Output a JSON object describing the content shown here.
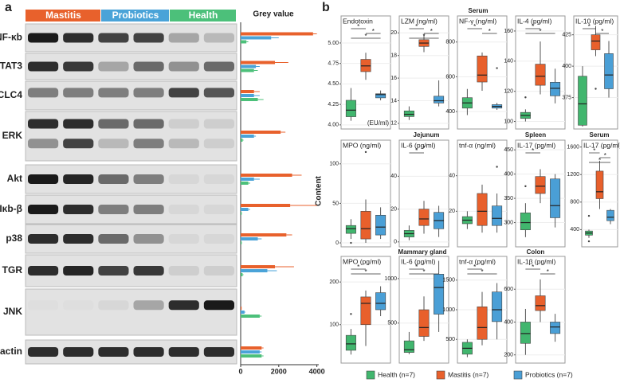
{
  "panel_labels": [
    "a",
    "b"
  ],
  "chart_data": [
    {
      "type": "hbar",
      "title": "Grey value",
      "categories": [
        "NF-κb",
        "STAT3",
        "CLC4",
        "ERK",
        "Akt",
        "Iκb-β",
        "p38",
        "TGR",
        "JNK",
        "β-actin"
      ],
      "series": [
        {
          "name": "Mastitis",
          "color": "#e8612c",
          "values": [
            3800,
            1800,
            700,
            2100,
            2700,
            2600,
            2400,
            1800,
            50,
            1100
          ],
          "errors": [
            200,
            700,
            300,
            250,
            500,
            1400,
            300,
            1000,
            0,
            100
          ]
        },
        {
          "name": "Probiotics",
          "color": "#4aa3d8",
          "values": [
            1600,
            800,
            700,
            700,
            700,
            400,
            900,
            1400,
            200,
            1000
          ],
          "errors": [
            400,
            200,
            300,
            100,
            300,
            100,
            200,
            500,
            50,
            100
          ]
        },
        {
          "name": "Health",
          "color": "#4cc07a",
          "values": [
            300,
            700,
            900,
            100,
            400,
            50,
            50,
            100,
            1000,
            1100
          ],
          "errors": [
            100,
            200,
            300,
            50,
            100,
            20,
            20,
            50,
            100,
            100
          ]
        }
      ],
      "xlim": [
        0,
        4100
      ],
      "xticks": [
        0,
        2000,
        4000
      ]
    },
    {
      "type": "box",
      "title": "Endotoxin",
      "annotation": "(EU/ml)",
      "ylim": [
        3.95,
        5.33
      ],
      "yticks": [
        {
          "value": 4,
          "label": "4.00"
        },
        4.25,
        {
          "value": 4.5,
          "label": "4.50"
        },
        4.75,
        {
          "value": 5,
          "label": "5.00"
        }
      ],
      "boxes": [
        {
          "min": 4.05,
          "q1": 4.1,
          "median": 4.18,
          "q3": 4.3,
          "max": 4.45,
          "outliers": []
        },
        {
          "min": 4.55,
          "q1": 4.65,
          "median": 4.72,
          "q3": 4.8,
          "max": 4.88,
          "outliers": []
        },
        {
          "min": 4.3,
          "q1": 4.33,
          "median": 4.37,
          "q3": 4.38,
          "max": 4.42,
          "outliers": []
        }
      ],
      "brackets": [
        {
          "from": 0,
          "to": 1,
          "label": "*"
        },
        {
          "from": 1,
          "to": 2,
          "label": "*"
        },
        {
          "from": 0,
          "to": 2,
          "label": "*"
        }
      ]
    },
    {
      "type": "box",
      "title": "LZM (ng/ml)",
      "ylim": [
        11.5,
        21.5
      ],
      "yticks": [
        12,
        14,
        16,
        18,
        20
      ],
      "boxes": [
        {
          "min": 12.3,
          "q1": 12.6,
          "median": 12.8,
          "q3": 13.1,
          "max": 13.5,
          "outliers": []
        },
        {
          "min": 18.3,
          "q1": 18.8,
          "median": 19.1,
          "q3": 19.4,
          "max": 19.9,
          "outliers": []
        },
        {
          "min": 13.5,
          "q1": 13.8,
          "median": 14,
          "q3": 14.4,
          "max": 15.8,
          "outliers": []
        }
      ],
      "brackets": [
        {
          "from": 0,
          "to": 1,
          "label": "*"
        },
        {
          "from": 1,
          "to": 2,
          "label": "*"
        },
        {
          "from": 0,
          "to": 2,
          "label": "*"
        }
      ]
    },
    {
      "type": "box",
      "title": "NF-γ (ng/ml)",
      "ylim": [
        300,
        950
      ],
      "yticks": [
        400,
        600,
        800
      ],
      "boxes": [
        {
          "min": 380,
          "q1": 420,
          "median": 450,
          "q3": 480,
          "max": 530,
          "outliers": []
        },
        {
          "min": 520,
          "q1": 570,
          "median": 610,
          "q3": 720,
          "max": 740,
          "outliers": []
        },
        {
          "min": 410,
          "q1": 420,
          "median": 430,
          "q3": 440,
          "max": 450,
          "outliers": [
            650
          ]
        }
      ],
      "brackets": [
        {
          "from": 0,
          "to": 1,
          "label": "*"
        },
        {
          "from": 1,
          "to": 2,
          "label": "*"
        }
      ]
    },
    {
      "type": "box",
      "title": "IL-4 (pg/ml)",
      "ylim": [
        95,
        170
      ],
      "yticks": [
        100,
        120,
        140,
        160
      ],
      "boxes": [
        {
          "min": 100,
          "q1": 102,
          "median": 104,
          "q3": 106,
          "max": 108,
          "outliers": [
            116
          ]
        },
        {
          "min": 118,
          "q1": 124,
          "median": 130,
          "q3": 138,
          "max": 153,
          "outliers": []
        },
        {
          "min": 112,
          "q1": 117,
          "median": 122,
          "q3": 126,
          "max": 135,
          "outliers": []
        }
      ],
      "brackets": [
        {
          "from": 0,
          "to": 1,
          "label": "*"
        },
        {
          "from": 0,
          "to": 2,
          "label": "*"
        }
      ]
    },
    {
      "type": "box",
      "title": "IL-10 (pg/ml)",
      "ylim": [
        350,
        440
      ],
      "yticks": [
        375,
        400,
        425
      ],
      "boxes": [
        {
          "min": 352,
          "q1": 353,
          "median": 370,
          "q3": 392,
          "max": 400,
          "outliers": []
        },
        {
          "min": 408,
          "q1": 413,
          "median": 420,
          "q3": 425,
          "max": 432,
          "outliers": [
            382
          ]
        },
        {
          "min": 375,
          "q1": 382,
          "median": 393,
          "q3": 410,
          "max": 420,
          "outliers": []
        }
      ],
      "brackets": [
        {
          "from": 0,
          "to": 1,
          "label": "*"
        },
        {
          "from": 1,
          "to": 2,
          "label": "*"
        }
      ]
    },
    {
      "type": "box",
      "title": "MPO (ng/ml)",
      "ylim": [
        -5,
        130
      ],
      "yticks": [
        0,
        50,
        100
      ],
      "boxes": [
        {
          "min": 5,
          "q1": 12,
          "median": 18,
          "q3": 22,
          "max": 30,
          "outliers": [
            0
          ]
        },
        {
          "min": 0,
          "q1": 5,
          "median": 18,
          "q3": 40,
          "max": 55,
          "outliers": [
            115
          ]
        },
        {
          "min": 5,
          "q1": 10,
          "median": 20,
          "q3": 35,
          "max": 45,
          "outliers": []
        }
      ],
      "brackets": []
    },
    {
      "type": "box",
      "title": "IL-6 (pg/ml)",
      "ylim": [
        -3,
        62
      ],
      "yticks": [
        0,
        20,
        40
      ],
      "boxes": [
        {
          "min": 1,
          "q1": 3,
          "median": 5,
          "q3": 7,
          "max": 10,
          "outliers": []
        },
        {
          "min": 5,
          "q1": 10,
          "median": 14,
          "q3": 20,
          "max": 25,
          "outliers": [
            58
          ]
        },
        {
          "min": 3,
          "q1": 8,
          "median": 13,
          "q3": 18,
          "max": 22,
          "outliers": []
        }
      ],
      "brackets": [
        {
          "from": 0,
          "to": 1,
          "label": "*"
        }
      ]
    },
    {
      "type": "box",
      "title": "tnf-α (ng/ml)",
      "ylim": [
        0,
        60
      ],
      "yticks": [
        20,
        40
      ],
      "boxes": [
        {
          "min": 10,
          "q1": 13,
          "median": 15,
          "q3": 17,
          "max": 20,
          "outliers": []
        },
        {
          "min": 8,
          "q1": 12,
          "median": 20,
          "q3": 30,
          "max": 35,
          "outliers": []
        },
        {
          "min": 8,
          "q1": 12,
          "median": 16,
          "q3": 23,
          "max": 30,
          "outliers": [
            45
          ]
        }
      ],
      "brackets": []
    },
    {
      "type": "box",
      "title": "IL-17 (pg/ml)",
      "ylim": [
        250,
        470
      ],
      "yticks": [
        300,
        350,
        400,
        450
      ],
      "boxes": [
        {
          "min": 270,
          "q1": 285,
          "median": 300,
          "q3": 320,
          "max": 340,
          "outliers": [
            375
          ]
        },
        {
          "min": 340,
          "q1": 360,
          "median": 375,
          "q3": 395,
          "max": 410,
          "outliers": []
        },
        {
          "min": 290,
          "q1": 310,
          "median": 335,
          "q3": 390,
          "max": 400,
          "outliers": []
        }
      ],
      "brackets": [
        {
          "from": 0,
          "to": 1,
          "label": "*"
        }
      ]
    },
    {
      "type": "box",
      "title": "IL-17 (pg/ml)",
      "ylim": [
        150,
        1700
      ],
      "yticks": [
        400,
        800,
        1200,
        1600
      ],
      "boxes": [
        {
          "min": 280,
          "q1": 320,
          "median": 350,
          "q3": 380,
          "max": 400,
          "outliers": [
            230,
            600
          ]
        },
        {
          "min": 700,
          "q1": 850,
          "median": 950,
          "q3": 1250,
          "max": 1400,
          "outliers": []
        },
        {
          "min": 480,
          "q1": 530,
          "median": 580,
          "q3": 680,
          "max": 700,
          "outliers": []
        }
      ],
      "brackets": [
        {
          "from": 0,
          "to": 1,
          "label": "*"
        },
        {
          "from": 1,
          "to": 2,
          "label": "*"
        },
        {
          "from": 0,
          "to": 2,
          "label": "*"
        }
      ]
    },
    {
      "type": "box",
      "title": "MPO (pg/ml)",
      "ylim": [
        10,
        260
      ],
      "yticks": [
        100,
        200
      ],
      "boxes": [
        {
          "min": 30,
          "q1": 40,
          "median": 55,
          "q3": 75,
          "max": 90,
          "outliers": [
            125
          ]
        },
        {
          "min": 50,
          "q1": 100,
          "median": 150,
          "q3": 165,
          "max": 180,
          "outliers": []
        },
        {
          "min": 120,
          "q1": 135,
          "median": 150,
          "q3": 175,
          "max": 190,
          "outliers": []
        }
      ],
      "brackets": [
        {
          "from": 0,
          "to": 1,
          "label": "*"
        },
        {
          "from": 0,
          "to": 2,
          "label": "*"
        }
      ]
    },
    {
      "type": "box",
      "title": "IL-6 (pg/ml)",
      "ylim": [
        50,
        1250
      ],
      "yticks": [
        500,
        1000
      ],
      "boxes": [
        {
          "min": 150,
          "q1": 170,
          "median": 200,
          "q3": 300,
          "max": 400,
          "outliers": []
        },
        {
          "min": 300,
          "q1": 350,
          "median": 450,
          "q3": 650,
          "max": 800,
          "outliers": []
        },
        {
          "min": 400,
          "q1": 600,
          "median": 900,
          "q3": 1050,
          "max": 1200,
          "outliers": []
        }
      ],
      "brackets": [
        {
          "from": 0,
          "to": 1,
          "label": "*"
        },
        {
          "from": 0,
          "to": 2,
          "label": "*"
        }
      ]
    },
    {
      "type": "box",
      "title": "tnf-α (pg/ml)",
      "ylim": [
        100,
        1900
      ],
      "yticks": [
        500,
        1000,
        1500
      ],
      "boxes": [
        {
          "min": 200,
          "q1": 250,
          "median": 350,
          "q3": 450,
          "max": 500,
          "outliers": []
        },
        {
          "min": 400,
          "q1": 500,
          "median": 700,
          "q3": 1050,
          "max": 1300,
          "outliers": []
        },
        {
          "min": 500,
          "q1": 800,
          "median": 1000,
          "q3": 1300,
          "max": 1450,
          "outliers": []
        }
      ],
      "brackets": [
        {
          "from": 0,
          "to": 1,
          "label": "*"
        },
        {
          "from": 0,
          "to": 2,
          "label": "*"
        }
      ]
    },
    {
      "type": "box",
      "title": "IL-1β (pg/ml)",
      "ylim": [
        150,
        800
      ],
      "yticks": [
        200,
        400,
        600
      ],
      "boxes": [
        {
          "min": 200,
          "q1": 270,
          "median": 330,
          "q3": 400,
          "max": 480,
          "outliers": []
        },
        {
          "min": 400,
          "q1": 470,
          "median": 500,
          "q3": 560,
          "max": 660,
          "outliers": []
        },
        {
          "min": 280,
          "q1": 330,
          "median": 370,
          "q3": 400,
          "max": 450,
          "outliers": []
        }
      ],
      "brackets": [
        {
          "from": 0,
          "to": 1,
          "label": "*"
        },
        {
          "from": 1,
          "to": 2,
          "label": "*"
        }
      ]
    }
  ],
  "box_sections": [
    "Serum",
    "Jejunum",
    "Spleen",
    "Serum",
    "Mammary gland",
    "Colon"
  ],
  "box_ylabel": "Content",
  "legend": {
    "labels": [
      "Health (n=7)",
      "Mastitis (n=7)",
      "Probiotics (n=7)"
    ],
    "colors": [
      "#41b66e",
      "#e8602c",
      "#4a9fd6"
    ]
  }
}
